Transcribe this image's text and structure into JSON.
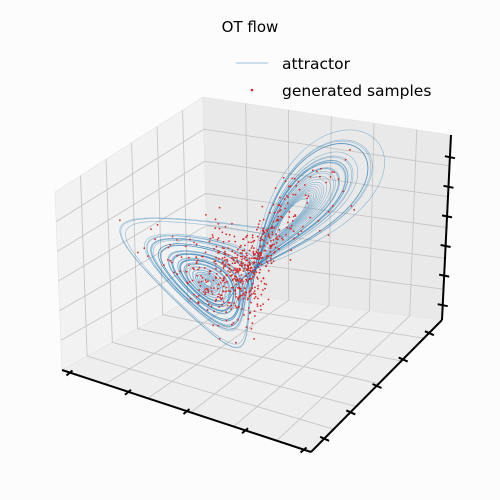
{
  "chart_data": {
    "type": "line",
    "projection": "3d",
    "title": "OT flow",
    "xlabel": "",
    "ylabel": "",
    "zlabel": "",
    "tick_labels_visible": false,
    "grid": true,
    "legend_position": "top-right",
    "series": [
      {
        "name": "attractor",
        "kind": "line",
        "color": "#1f77b4",
        "system": "lorenz",
        "params": {
          "sigma": 10,
          "rho": 28,
          "beta": 2.6667
        },
        "initial_point": [
          1,
          1,
          1
        ]
      },
      {
        "name": "generated samples",
        "kind": "scatter",
        "color": "#d62728",
        "count": 600
      }
    ]
  }
}
